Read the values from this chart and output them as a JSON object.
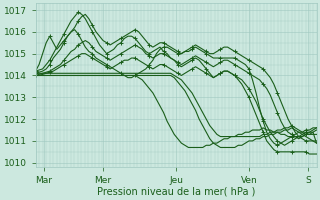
{
  "xlabel": "Pression niveau de la mer( hPa )",
  "bg_color": "#cce8df",
  "grid_color": "#a0c8c0",
  "line_color": "#1a5e1a",
  "xlim": [
    0,
    1
  ],
  "ylim": [
    1009.8,
    1017.3
  ],
  "yticks": [
    1010,
    1011,
    1012,
    1013,
    1014,
    1015,
    1016,
    1017
  ],
  "xtick_positions": [
    0.03,
    0.24,
    0.5,
    0.76,
    0.97
  ],
  "xtick_labels": [
    "Mar",
    "Mer",
    "Jeu",
    "Ven",
    "S"
  ],
  "figsize": [
    3.2,
    2.0
  ],
  "dpi": 100,
  "series": [
    {
      "y": [
        1014.1,
        1014.15,
        1014.2,
        1014.3,
        1014.5,
        1014.8,
        1015.0,
        1015.2,
        1015.5,
        1015.8,
        1016.0,
        1016.2,
        1016.5,
        1016.7,
        1016.8,
        1016.6,
        1016.3,
        1016.0,
        1015.8,
        1015.6,
        1015.5,
        1015.4,
        1015.5,
        1015.6,
        1015.7,
        1015.8,
        1015.9,
        1016.0,
        1016.1,
        1016.0,
        1015.8,
        1015.6,
        1015.4,
        1015.3,
        1015.4,
        1015.5,
        1015.5,
        1015.4,
        1015.3,
        1015.2,
        1015.1,
        1015.0,
        1015.1,
        1015.2,
        1015.3,
        1015.4,
        1015.3,
        1015.2,
        1015.1,
        1015.0,
        1015.0,
        1015.1,
        1015.2,
        1015.3,
        1015.3,
        1015.2,
        1015.1,
        1015.0,
        1014.9,
        1014.8,
        1014.7,
        1014.6,
        1014.5,
        1014.4,
        1014.3,
        1014.1,
        1013.9,
        1013.6,
        1013.2,
        1012.8,
        1012.4,
        1012.0,
        1011.7,
        1011.4,
        1011.2,
        1011.1,
        1011.0,
        1011.0,
        1011.0,
        1010.9
      ],
      "markers": true
    },
    {
      "y": [
        1014.0,
        1014.05,
        1014.1,
        1014.15,
        1014.2,
        1014.3,
        1014.4,
        1014.5,
        1014.7,
        1014.9,
        1015.1,
        1015.2,
        1015.4,
        1015.5,
        1015.6,
        1015.5,
        1015.3,
        1015.1,
        1015.0,
        1014.9,
        1014.8,
        1014.7,
        1014.8,
        1014.9,
        1015.0,
        1015.1,
        1015.2,
        1015.3,
        1015.4,
        1015.3,
        1015.2,
        1015.0,
        1014.9,
        1014.8,
        1014.9,
        1015.0,
        1015.0,
        1014.9,
        1014.8,
        1014.7,
        1014.6,
        1014.5,
        1014.6,
        1014.7,
        1014.8,
        1014.9,
        1014.8,
        1014.7,
        1014.6,
        1014.5,
        1014.4,
        1014.5,
        1014.6,
        1014.7,
        1014.7,
        1014.6,
        1014.5,
        1014.4,
        1014.3,
        1014.2,
        1014.1,
        1014.0,
        1013.9,
        1013.8,
        1013.6,
        1013.4,
        1013.1,
        1012.7,
        1012.3,
        1011.9,
        1011.6,
        1011.4,
        1011.3,
        1011.2,
        1011.1,
        1011.2,
        1011.3,
        1011.4,
        1011.5,
        1011.6
      ],
      "markers": true
    },
    {
      "y": [
        1014.2,
        1014.25,
        1014.3,
        1014.5,
        1014.7,
        1015.0,
        1015.3,
        1015.6,
        1015.9,
        1016.2,
        1016.5,
        1016.7,
        1016.9,
        1016.8,
        1016.6,
        1016.3,
        1016.0,
        1015.7,
        1015.4,
        1015.2,
        1015.0,
        1015.1,
        1015.2,
        1015.4,
        1015.5,
        1015.7,
        1015.8,
        1015.8,
        1015.7,
        1015.5,
        1015.3,
        1015.1,
        1015.0,
        1015.1,
        1015.2,
        1015.3,
        1015.1,
        1015.0,
        1014.8,
        1014.7,
        1014.5,
        1014.4,
        1014.5,
        1014.6,
        1014.7,
        1014.8,
        1014.7,
        1014.5,
        1014.3,
        1014.1,
        1013.9,
        1014.0,
        1014.1,
        1014.2,
        1014.2,
        1014.1,
        1014.0,
        1013.8,
        1013.6,
        1013.3,
        1013.0,
        1012.6,
        1012.2,
        1011.8,
        1011.4,
        1011.0,
        1010.8,
        1010.6,
        1010.5,
        1010.5,
        1010.5,
        1010.5,
        1010.5,
        1010.5,
        1010.5,
        1010.5,
        1010.5,
        1010.4,
        1010.4,
        1010.4
      ],
      "markers": true
    },
    {
      "y": [
        1014.0,
        1014.0,
        1014.05,
        1014.1,
        1014.15,
        1014.2,
        1014.3,
        1014.4,
        1014.5,
        1014.6,
        1014.7,
        1014.8,
        1014.9,
        1015.0,
        1015.0,
        1014.9,
        1014.8,
        1014.7,
        1014.6,
        1014.5,
        1014.4,
        1014.3,
        1014.4,
        1014.5,
        1014.6,
        1014.7,
        1014.7,
        1014.8,
        1014.8,
        1014.7,
        1014.6,
        1014.5,
        1014.4,
        1014.3,
        1014.4,
        1014.5,
        1014.5,
        1014.4,
        1014.3,
        1014.2,
        1014.1,
        1014.0,
        1014.1,
        1014.2,
        1014.3,
        1014.4,
        1014.3,
        1014.2,
        1014.1,
        1014.0,
        1013.9,
        1014.0,
        1014.1,
        1014.2,
        1014.2,
        1014.1,
        1014.0,
        1013.9,
        1013.8,
        1013.6,
        1013.4,
        1013.1,
        1012.8,
        1012.4,
        1012.0,
        1011.7,
        1011.4,
        1011.2,
        1011.0,
        1010.9,
        1010.8,
        1010.9,
        1011.0,
        1011.1,
        1011.2,
        1011.3,
        1011.4,
        1011.4,
        1011.4,
        1011.5
      ],
      "markers": true
    },
    {
      "y": [
        1014.1,
        1014.1,
        1014.1,
        1014.1,
        1014.1,
        1014.1,
        1014.1,
        1014.1,
        1014.1,
        1014.1,
        1014.1,
        1014.1,
        1014.1,
        1014.1,
        1014.1,
        1014.1,
        1014.1,
        1014.1,
        1014.1,
        1014.1,
        1014.1,
        1014.1,
        1014.1,
        1014.1,
        1014.1,
        1014.1,
        1014.1,
        1014.1,
        1014.1,
        1014.1,
        1014.1,
        1014.1,
        1014.1,
        1014.1,
        1014.1,
        1014.1,
        1014.1,
        1014.1,
        1014.1,
        1014.0,
        1013.9,
        1013.8,
        1013.6,
        1013.4,
        1013.2,
        1012.9,
        1012.6,
        1012.3,
        1012.0,
        1011.7,
        1011.5,
        1011.3,
        1011.2,
        1011.2,
        1011.2,
        1011.2,
        1011.2,
        1011.2,
        1011.2,
        1011.2,
        1011.2,
        1011.2,
        1011.2,
        1011.2,
        1011.3,
        1011.3,
        1011.4,
        1011.4,
        1011.5,
        1011.5,
        1011.6,
        1011.6,
        1011.7,
        1011.6,
        1011.5,
        1011.4,
        1011.3,
        1011.3,
        1011.3,
        1011.3
      ],
      "markers": false
    },
    {
      "y": [
        1014.0,
        1014.0,
        1014.0,
        1014.0,
        1014.0,
        1014.0,
        1014.0,
        1014.0,
        1014.0,
        1014.0,
        1014.0,
        1014.0,
        1014.0,
        1014.0,
        1014.0,
        1014.0,
        1014.0,
        1014.0,
        1014.0,
        1014.0,
        1014.0,
        1014.0,
        1014.0,
        1014.0,
        1014.0,
        1014.0,
        1014.0,
        1014.0,
        1014.0,
        1014.0,
        1014.0,
        1014.0,
        1014.0,
        1014.0,
        1014.0,
        1014.0,
        1014.0,
        1014.0,
        1014.0,
        1013.9,
        1013.7,
        1013.5,
        1013.3,
        1013.0,
        1012.7,
        1012.4,
        1012.0,
        1011.7,
        1011.4,
        1011.1,
        1010.9,
        1010.8,
        1010.7,
        1010.7,
        1010.7,
        1010.7,
        1010.7,
        1010.8,
        1010.8,
        1010.9,
        1011.0,
        1011.0,
        1011.1,
        1011.1,
        1011.2,
        1011.2,
        1011.3,
        1011.3,
        1011.4,
        1011.4,
        1011.5,
        1011.5,
        1011.6,
        1011.5,
        1011.4,
        1011.3,
        1011.2,
        1011.1,
        1011.0,
        1011.0
      ],
      "markers": false
    },
    {
      "y": [
        1014.2,
        1014.5,
        1015.0,
        1015.5,
        1015.8,
        1015.5,
        1015.2,
        1015.4,
        1015.6,
        1015.8,
        1016.0,
        1016.1,
        1015.9,
        1015.6,
        1015.3,
        1015.1,
        1015.0,
        1014.8,
        1014.7,
        1014.6,
        1014.5,
        1014.4,
        1014.3,
        1014.2,
        1014.1,
        1014.0,
        1013.9,
        1013.9,
        1014.0,
        1014.1,
        1014.2,
        1014.3,
        1014.5,
        1014.7,
        1015.0,
        1015.2,
        1015.3,
        1015.3,
        1015.2,
        1015.1,
        1015.0,
        1015.0,
        1015.1,
        1015.1,
        1015.2,
        1015.3,
        1015.2,
        1015.1,
        1015.0,
        1014.9,
        1014.8,
        1014.8,
        1014.8,
        1014.8,
        1014.8,
        1014.8,
        1014.8,
        1014.7,
        1014.6,
        1014.5,
        1014.3,
        1013.8,
        1013.2,
        1012.5,
        1011.9,
        1011.4,
        1011.1,
        1010.9,
        1010.8,
        1010.9,
        1011.0,
        1011.1,
        1011.2,
        1011.3,
        1011.4,
        1011.4,
        1011.5,
        1011.5,
        1011.6,
        1011.6
      ],
      "markers": true
    },
    {
      "y": [
        1014.0,
        1014.0,
        1014.0,
        1014.0,
        1014.0,
        1014.0,
        1014.0,
        1014.0,
        1014.0,
        1014.0,
        1014.0,
        1014.0,
        1014.0,
        1014.0,
        1014.0,
        1014.0,
        1014.0,
        1014.0,
        1014.0,
        1014.0,
        1014.0,
        1014.0,
        1014.0,
        1014.0,
        1014.0,
        1014.0,
        1014.0,
        1014.0,
        1014.0,
        1013.9,
        1013.8,
        1013.6,
        1013.4,
        1013.2,
        1012.9,
        1012.6,
        1012.3,
        1011.9,
        1011.6,
        1011.3,
        1011.1,
        1010.9,
        1010.8,
        1010.7,
        1010.7,
        1010.7,
        1010.7,
        1010.7,
        1010.8,
        1010.8,
        1010.9,
        1010.9,
        1011.0,
        1011.1,
        1011.1,
        1011.2,
        1011.2,
        1011.3,
        1011.3,
        1011.4,
        1011.4,
        1011.5,
        1011.5,
        1011.5,
        1011.6,
        1011.5,
        1011.5,
        1011.4,
        1011.4,
        1011.3,
        1011.3,
        1011.2,
        1011.2,
        1011.2,
        1011.2,
        1011.2,
        1011.3,
        1011.3,
        1011.4,
        1010.9
      ],
      "markers": false
    }
  ]
}
